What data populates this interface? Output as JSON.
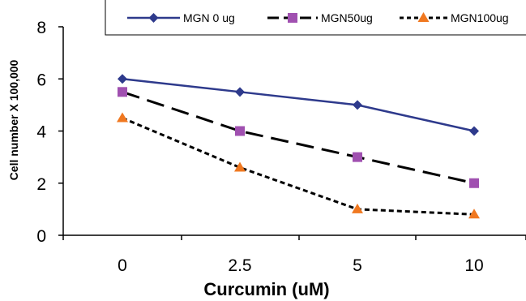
{
  "chart_data": {
    "type": "line",
    "title": "",
    "xlabel": "Curcumin (uM)",
    "ylabel": "Cell number X 100,000",
    "categories": [
      "0",
      "2.5",
      "5",
      "10"
    ],
    "ylim": [
      0,
      8
    ],
    "yticks": [
      "0",
      "2",
      "4",
      "6",
      "8"
    ],
    "grid": false,
    "legend": "top",
    "series": [
      {
        "name": "MGN 0 ug",
        "values": [
          6.0,
          5.5,
          5.0,
          4.0
        ],
        "color": "#2e3a8c",
        "dash": "solid",
        "marker": "diamond"
      },
      {
        "name": "MGN50ug",
        "values": [
          5.5,
          4.0,
          3.0,
          2.0
        ],
        "color": "#000000",
        "dash": "long-dash",
        "marker": "square",
        "marker_color": "#a050b0"
      },
      {
        "name": "MGN100ug",
        "values": [
          4.5,
          2.6,
          1.0,
          0.8
        ],
        "color": "#000000",
        "dash": "short-dash",
        "marker": "triangle",
        "marker_color": "#f07820"
      }
    ]
  }
}
